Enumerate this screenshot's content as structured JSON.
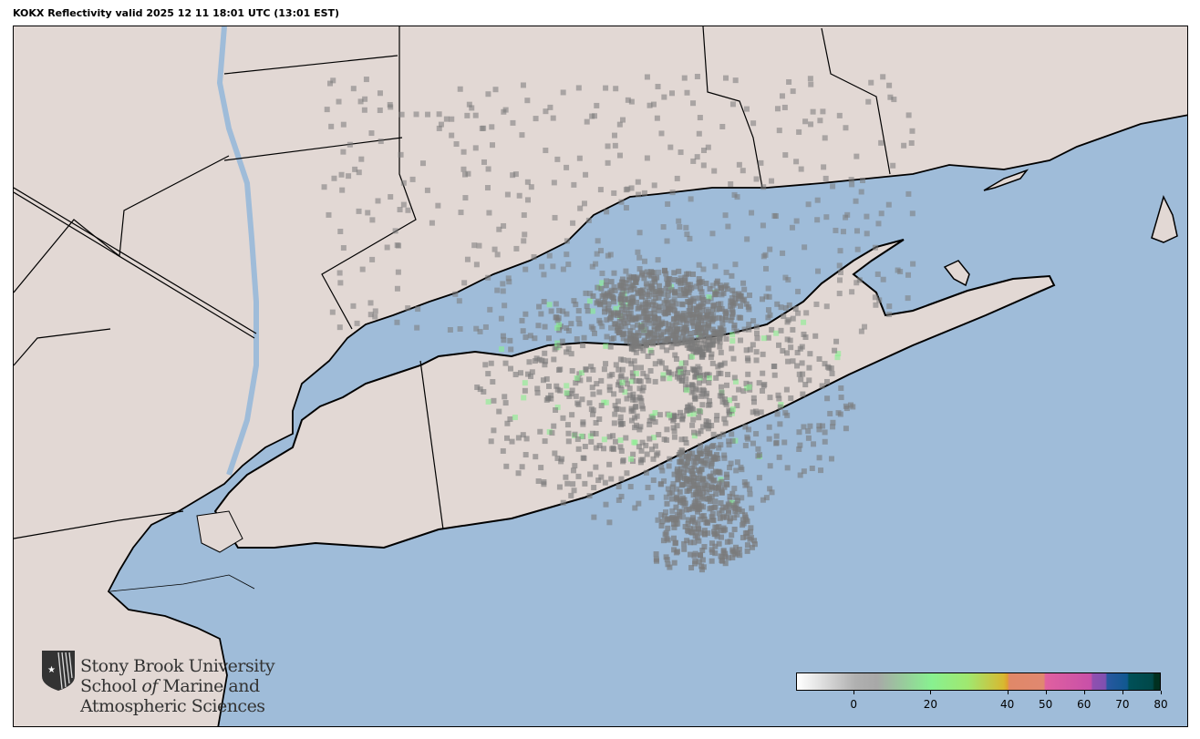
{
  "title": "KOKX Reflectivity valid 2025 12 11 18:01 UTC (13:01 EST)",
  "map": {
    "colors": {
      "ocean": "#9fbcd9",
      "land": "#e2d8d4",
      "border": "#000000",
      "echo": "#7a7a7a",
      "echo_light": "#88f090"
    },
    "radar_site": "KOKX"
  },
  "logo": {
    "line1": "Stony Brook University",
    "line2_a": "School ",
    "line2_b": "of",
    "line2_c": " Marine and",
    "line3": "Atmospheric Sciences"
  },
  "colorbar": {
    "min": -15,
    "max": 80,
    "ticks": [
      "0",
      "20",
      "40",
      "50",
      "60",
      "70",
      "80"
    ],
    "tick_values": [
      0,
      20,
      40,
      50,
      60,
      70,
      80
    ]
  }
}
